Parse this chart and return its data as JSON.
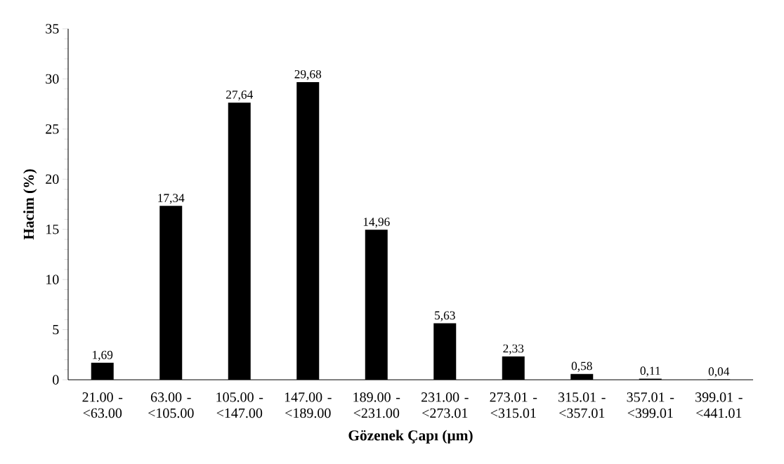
{
  "chart_data": {
    "type": "bar",
    "xlabel": "Gözenek Çapı (µm)",
    "ylabel": "Hacim (%)",
    "categories": [
      "21.00 - <63.00",
      "63.00 - <105.00",
      "105.00 - <147.00",
      "147.00 - <189.00",
      "189.00 - <231.00",
      "231.00 - <273.01",
      "273.01 - <315.01",
      "315.01 - <357.01",
      "357.01 - <399.01",
      "399.01 - <441.01"
    ],
    "values": [
      1.69,
      17.34,
      27.64,
      29.68,
      14.96,
      5.63,
      2.33,
      0.58,
      0.11,
      0.04
    ],
    "value_labels": [
      "1,69",
      "17,34",
      "27,64",
      "29,68",
      "14,96",
      "5,63",
      "2,33",
      "0,58",
      "0,11",
      "0,04"
    ],
    "color": "#000000",
    "ylim": [
      0,
      35
    ],
    "yticks": [
      0,
      5,
      10,
      15,
      20,
      25,
      30,
      35
    ],
    "grid": false
  }
}
